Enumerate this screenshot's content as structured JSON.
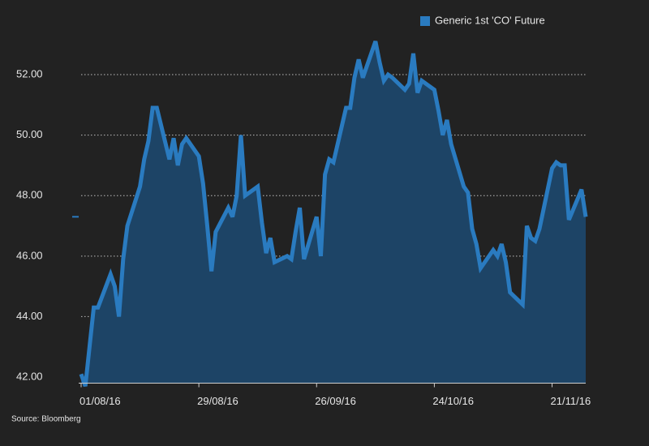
{
  "chart_data": {
    "type": "area",
    "legend_position": "top-right",
    "source": "Source: Bloomberg",
    "grid": true,
    "xlim": [
      "2016-08-01",
      "2016-11-29"
    ],
    "xticks": [
      {
        "value": "2016-08-01",
        "label": "01/08/16"
      },
      {
        "value": "2016-08-29",
        "label": "29/08/16"
      },
      {
        "value": "2016-09-26",
        "label": "26/09/16"
      },
      {
        "value": "2016-10-24",
        "label": "24/10/16"
      },
      {
        "value": "2016-11-21",
        "label": "21/11/16"
      }
    ],
    "ylim": [
      41.8,
      53.4
    ],
    "yticks": [
      {
        "value": 42,
        "label": "42.00"
      },
      {
        "value": 44,
        "label": "44.00"
      },
      {
        "value": 46,
        "label": "46.00"
      },
      {
        "value": 48,
        "label": "48.00"
      },
      {
        "value": 50,
        "label": "50.00"
      },
      {
        "value": 52,
        "label": "52.00"
      }
    ],
    "x": [
      "2016-08-01",
      "2016-08-02",
      "2016-08-03",
      "2016-08-04",
      "2016-08-05",
      "2016-08-08",
      "2016-08-09",
      "2016-08-10",
      "2016-08-11",
      "2016-08-12",
      "2016-08-15",
      "2016-08-16",
      "2016-08-17",
      "2016-08-18",
      "2016-08-19",
      "2016-08-22",
      "2016-08-23",
      "2016-08-24",
      "2016-08-25",
      "2016-08-26",
      "2016-08-29",
      "2016-08-30",
      "2016-08-31",
      "2016-09-01",
      "2016-09-02",
      "2016-09-05",
      "2016-09-06",
      "2016-09-07",
      "2016-09-08",
      "2016-09-09",
      "2016-09-12",
      "2016-09-13",
      "2016-09-14",
      "2016-09-15",
      "2016-09-16",
      "2016-09-19",
      "2016-09-20",
      "2016-09-21",
      "2016-09-22",
      "2016-09-23",
      "2016-09-26",
      "2016-09-27",
      "2016-09-28",
      "2016-09-29",
      "2016-09-30",
      "2016-10-03",
      "2016-10-04",
      "2016-10-05",
      "2016-10-06",
      "2016-10-07",
      "2016-10-10",
      "2016-10-11",
      "2016-10-12",
      "2016-10-13",
      "2016-10-14",
      "2016-10-17",
      "2016-10-18",
      "2016-10-19",
      "2016-10-20",
      "2016-10-21",
      "2016-10-24",
      "2016-10-25",
      "2016-10-26",
      "2016-10-27",
      "2016-10-28",
      "2016-10-31",
      "2016-11-01",
      "2016-11-02",
      "2016-11-03",
      "2016-11-04",
      "2016-11-07",
      "2016-11-08",
      "2016-11-09",
      "2016-11-10",
      "2016-11-11",
      "2016-11-14",
      "2016-11-15",
      "2016-11-16",
      "2016-11-17",
      "2016-11-18",
      "2016-11-21",
      "2016-11-22",
      "2016-11-23",
      "2016-11-24",
      "2016-11-25",
      "2016-11-28",
      "2016-11-29"
    ],
    "series": [
      {
        "name": "Generic 1st 'CO' Future",
        "color": "#2a7bc0",
        "fill": "#1d4466",
        "values": [
          42.1,
          41.7,
          43.0,
          44.3,
          44.3,
          45.4,
          45.0,
          44.0,
          45.9,
          47.0,
          48.3,
          49.2,
          49.8,
          50.9,
          50.9,
          49.2,
          49.9,
          49.0,
          49.7,
          49.9,
          49.3,
          48.4,
          47.0,
          45.5,
          46.8,
          47.6,
          47.3,
          48.0,
          50.0,
          48.0,
          48.3,
          47.1,
          46.1,
          46.6,
          45.8,
          46.0,
          45.9,
          46.8,
          47.6,
          45.9,
          47.3,
          46.0,
          48.7,
          49.2,
          49.1,
          50.9,
          50.9,
          51.9,
          52.5,
          51.9,
          53.1,
          52.4,
          51.8,
          52.0,
          51.9,
          51.5,
          51.7,
          52.7,
          51.4,
          51.8,
          51.5,
          50.8,
          50.0,
          50.5,
          49.7,
          48.3,
          48.1,
          46.9,
          46.4,
          45.6,
          46.2,
          46.0,
          46.4,
          45.8,
          44.8,
          44.4,
          47.0,
          46.6,
          46.5,
          46.9,
          48.9,
          49.1,
          49.0,
          49.0,
          47.2,
          48.2,
          47.3
        ]
      }
    ]
  }
}
